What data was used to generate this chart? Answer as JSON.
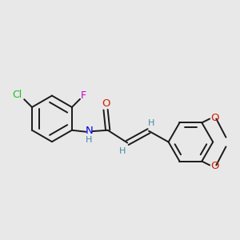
{
  "background_color": "#e8e8e8",
  "bond_color": "#1a1a1a",
  "cl_color": "#22bb22",
  "f_color": "#cc00cc",
  "n_color": "#0000ee",
  "o_color": "#cc2200",
  "h_color": "#4488aa",
  "figsize": [
    3.0,
    3.0
  ],
  "dpi": 100,
  "xlim": [
    -3.8,
    5.2
  ],
  "ylim": [
    -2.8,
    2.8
  ]
}
